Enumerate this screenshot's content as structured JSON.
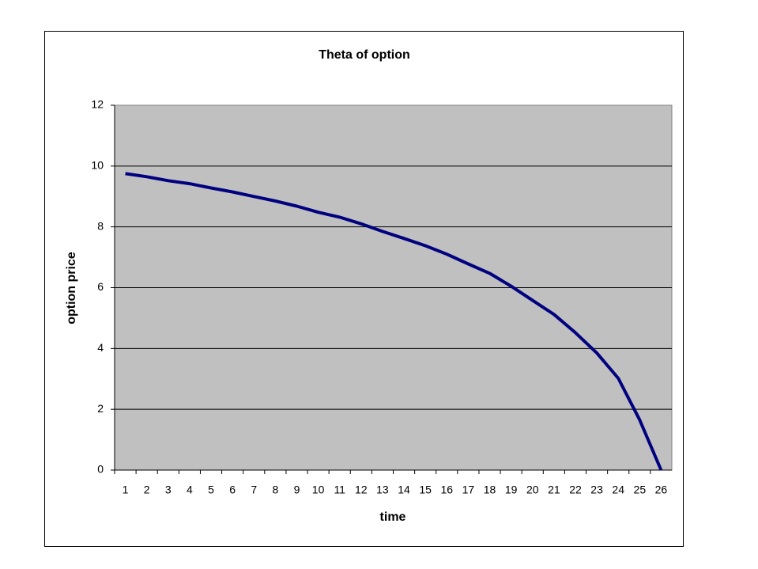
{
  "chart_data": {
    "type": "line",
    "title": "Theta of option",
    "x_label": "time",
    "y_label": "option price",
    "categories": [
      "1",
      "2",
      "3",
      "4",
      "5",
      "6",
      "7",
      "8",
      "9",
      "10",
      "11",
      "12",
      "13",
      "14",
      "15",
      "16",
      "17",
      "18",
      "19",
      "20",
      "21",
      "22",
      "23",
      "24",
      "25",
      "26"
    ],
    "series": [
      {
        "name": "option price",
        "color": "#000080",
        "values": [
          9.75,
          9.65,
          9.52,
          9.42,
          9.28,
          9.15,
          9.0,
          8.85,
          8.68,
          8.48,
          8.32,
          8.1,
          7.85,
          7.62,
          7.38,
          7.1,
          6.78,
          6.47,
          6.05,
          5.58,
          5.12,
          4.52,
          3.85,
          3.02,
          1.65,
          0
        ]
      }
    ],
    "ylim": [
      0,
      12
    ],
    "yticks": [
      0,
      2,
      4,
      6,
      8,
      10,
      12
    ],
    "grid": true,
    "legend": false
  }
}
